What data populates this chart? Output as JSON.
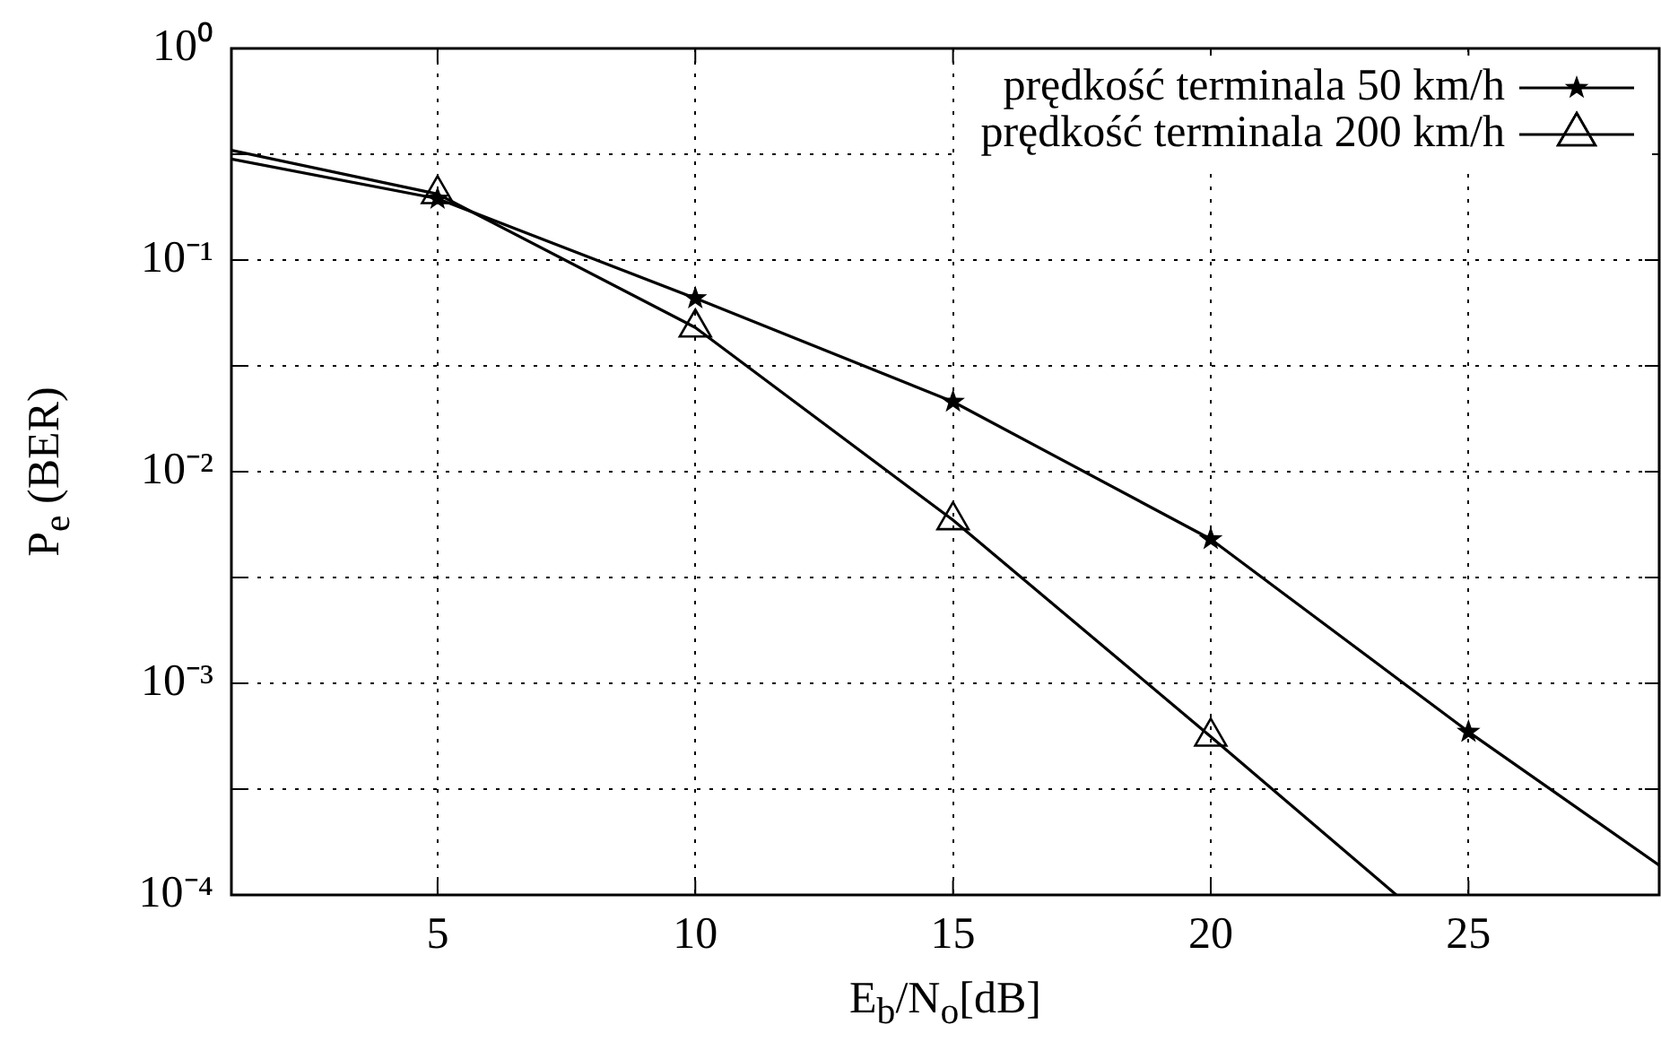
{
  "chart_data": {
    "type": "line",
    "xlabel": "E$_{b}$/N$_{o}$[dB]",
    "ylabel": "P$_{e}$ (BER)",
    "series": [
      {
        "name": "prędkość terminala 50 km/h",
        "color": "#000000",
        "marker": "star",
        "x": [
          1,
          5,
          10,
          15,
          20,
          25,
          28.7
        ],
        "values": [
          0.3,
          0.195,
          0.066,
          0.0214,
          0.0048,
          0.00059,
          0.000138
        ]
      },
      {
        "name": "prędkość terminala 200 km/h",
        "color": "#000000",
        "marker": "triangle",
        "x": [
          1,
          5,
          10,
          15,
          20,
          23.6
        ],
        "values": [
          0.33,
          0.205,
          0.048,
          0.0059,
          0.00056,
          0.0001
        ]
      }
    ],
    "xlim": [
      1,
      28.7
    ],
    "xticks": [
      5,
      10,
      15,
      20,
      25
    ],
    "ylim": [
      0.0001,
      1
    ],
    "log": "y",
    "yticks": [
      {
        "value": 1,
        "label": "10⁰"
      },
      {
        "value": 0.316,
        "label": null
      },
      {
        "value": 0.1,
        "label": "10⁻¹"
      },
      {
        "value": 0.0316,
        "label": null
      },
      {
        "value": 0.01,
        "label": "10⁻²"
      },
      {
        "value": 0.00316,
        "label": null
      },
      {
        "value": 0.001,
        "label": "10⁻³"
      },
      {
        "value": 0.000316,
        "label": null
      },
      {
        "value": 0.0001,
        "label": "10⁻⁴"
      }
    ],
    "grid": true,
    "line_style": "solid",
    "legend": "top right"
  }
}
